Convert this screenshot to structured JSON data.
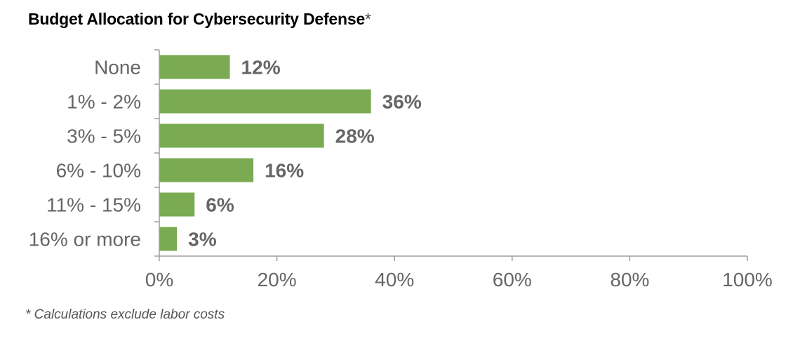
{
  "chart_data": {
    "type": "bar",
    "orientation": "horizontal",
    "title": "Budget Allocation for Cybersecurity Defense",
    "title_marker": "*",
    "categories": [
      "None",
      "1% - 2%",
      "3% - 5%",
      "6% - 10%",
      "11% - 15%",
      "16% or more"
    ],
    "values": [
      12,
      36,
      28,
      16,
      6,
      3
    ],
    "data_labels": [
      "12%",
      "36%",
      "28%",
      "16%",
      "6%",
      "3%"
    ],
    "xlim": [
      0,
      100
    ],
    "xticks": [
      0,
      20,
      40,
      60,
      80,
      100
    ],
    "xtick_labels": [
      "0%",
      "20%",
      "40%",
      "60%",
      "80%",
      "100%"
    ],
    "xlabel": "",
    "ylabel": "",
    "grid": false,
    "bar_color": "#7aab52",
    "axis_color": "#9e9e9e",
    "text_color": "#666666"
  },
  "footnote": "* Calculations exclude labor costs"
}
